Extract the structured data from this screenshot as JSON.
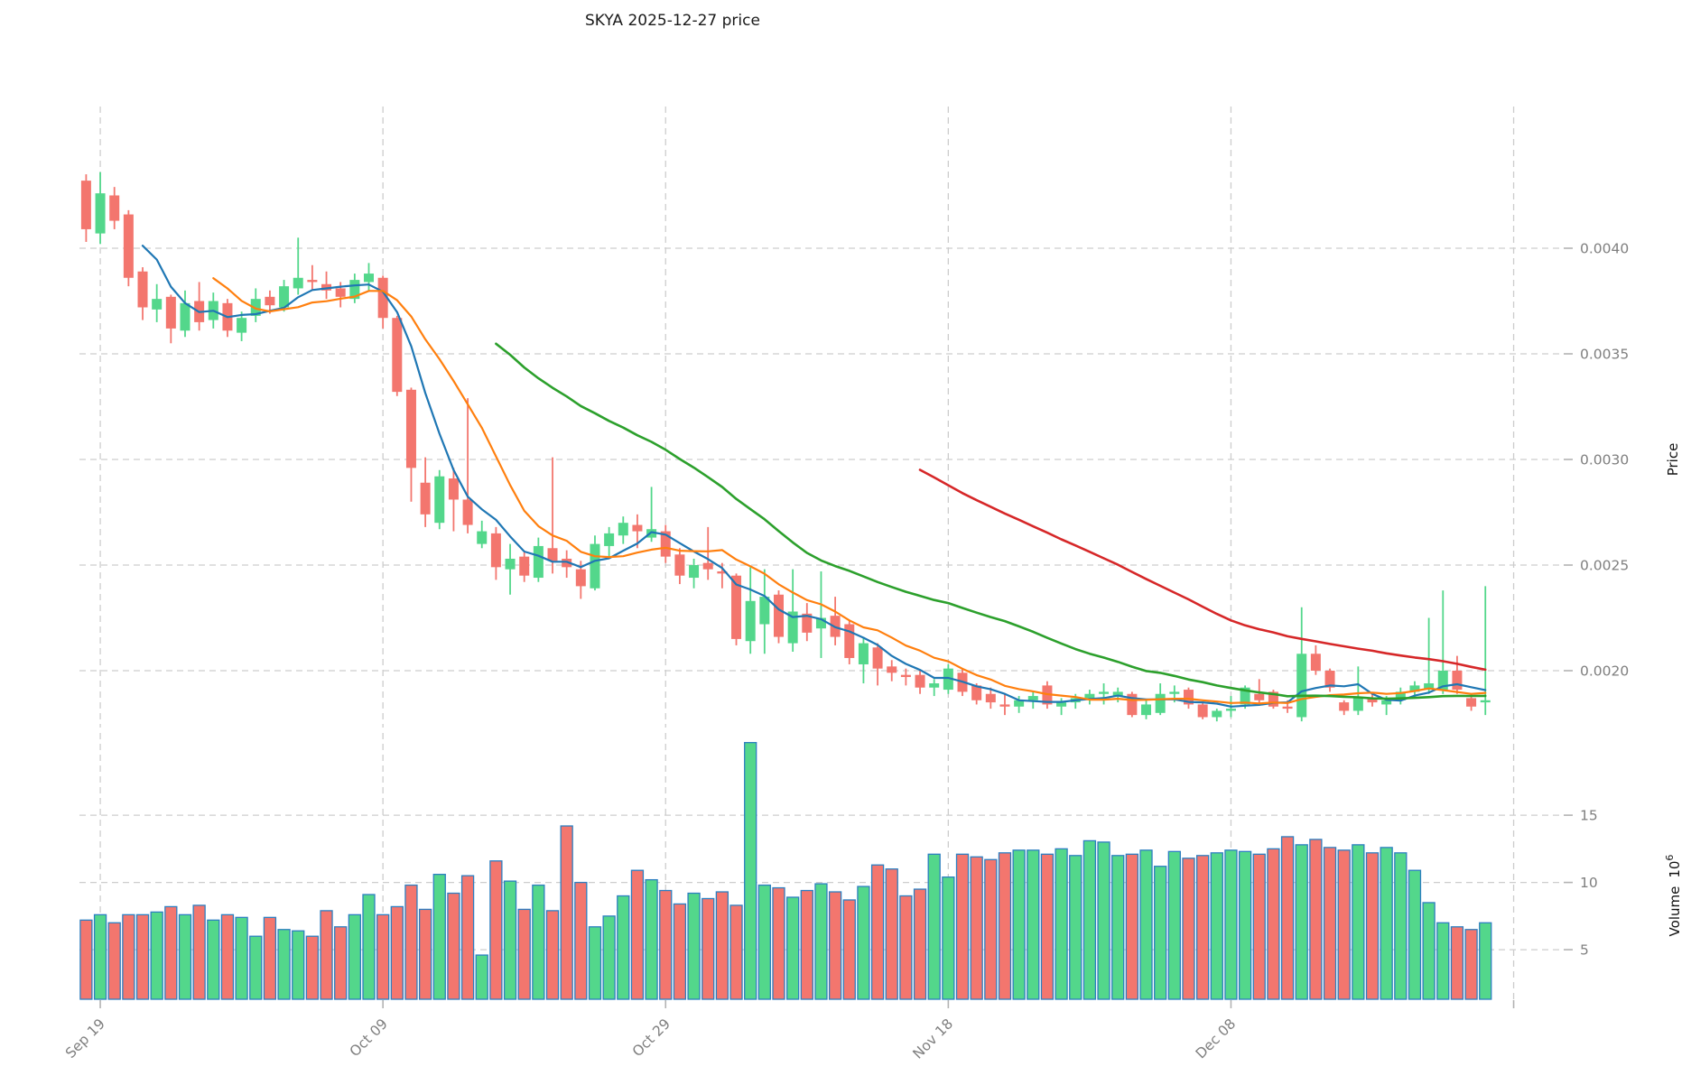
{
  "title": "SKYA  2025-12-27  price",
  "axes": {
    "price_label": "Price",
    "volume_label": "Volume",
    "volume_base": "10",
    "volume_exponent": "6",
    "price_ticks": [
      0.004,
      0.0035,
      0.003,
      0.0025,
      0.002
    ],
    "volume_ticks": [
      15,
      10,
      5
    ],
    "x_ticks": [
      {
        "label": "Sep 19",
        "day": 1
      },
      {
        "label": "Oct 09",
        "day": 21
      },
      {
        "label": "Oct 29",
        "day": 41
      },
      {
        "label": "Nov 18",
        "day": 61
      },
      {
        "label": "Dec 08",
        "day": 81
      },
      {
        "label": "",
        "day": 101
      }
    ]
  },
  "chart_data": {
    "type": "candlestick_with_volume",
    "symbol": "SKYA",
    "as_of_date": "2025-12-27",
    "year": "2025",
    "price_scale": 0.0001,
    "volume_unit": 1000000,
    "price_ylim": [
      0.00175,
      0.00468
    ],
    "grid": true,
    "colors": {
      "up": "#53d78b",
      "down": "#f3766e",
      "volume_edge": "#2d7fc1",
      "ma5": "#1f77b4",
      "ma10": "#ff7f0e",
      "ma30": "#2ca02c",
      "ma60": "#d62728",
      "gridline": "#cdcdcd",
      "tick_label": "#7f7f7f"
    },
    "moving_averages": [
      {
        "name": "MA5",
        "window": 5,
        "color": "#1f77b4",
        "width": 2.2
      },
      {
        "name": "MA10",
        "window": 10,
        "color": "#ff7f0e",
        "width": 2.2
      },
      {
        "name": "MA30",
        "window": 30,
        "color": "#2ca02c",
        "width": 2.6
      },
      {
        "name": "MA60",
        "window": 60,
        "color": "#d62728",
        "width": 2.6
      }
    ],
    "candles_columns": [
      "date",
      "open",
      "high",
      "low",
      "close",
      "volume_millions"
    ],
    "candles": [
      [
        "09-18",
        43.2,
        43.5,
        40.3,
        40.9,
        7.2
      ],
      [
        "09-19",
        40.7,
        43.6,
        40.2,
        42.6,
        7.6
      ],
      [
        "09-20",
        42.5,
        42.9,
        40.9,
        41.3,
        7.0
      ],
      [
        "09-21",
        41.6,
        41.8,
        38.2,
        38.6,
        7.6
      ],
      [
        "09-22",
        38.9,
        39.1,
        36.6,
        37.2,
        7.6
      ],
      [
        "09-23",
        37.1,
        38.3,
        36.5,
        37.6,
        7.8
      ],
      [
        "09-24",
        37.7,
        37.8,
        35.5,
        36.2,
        8.2
      ],
      [
        "09-25",
        36.1,
        38.0,
        35.8,
        37.4,
        7.6
      ],
      [
        "09-26",
        37.5,
        38.4,
        36.1,
        36.5,
        8.3
      ],
      [
        "09-27",
        36.6,
        37.9,
        36.2,
        37.5,
        7.2
      ],
      [
        "09-28",
        37.4,
        37.6,
        35.8,
        36.1,
        7.6
      ],
      [
        "09-29",
        36.0,
        37.0,
        35.6,
        36.7,
        7.4
      ],
      [
        "09-30",
        36.8,
        38.1,
        36.5,
        37.6,
        6.0
      ],
      [
        "10-01",
        37.7,
        38.0,
        36.9,
        37.3,
        7.4
      ],
      [
        "10-02",
        37.2,
        38.5,
        37.0,
        38.2,
        6.5
      ],
      [
        "10-03",
        38.1,
        40.5,
        37.8,
        38.6,
        6.4
      ],
      [
        "10-04",
        38.5,
        39.2,
        38.0,
        38.4,
        6.0
      ],
      [
        "10-05",
        38.3,
        38.9,
        37.6,
        38.0,
        7.9
      ],
      [
        "10-06",
        38.1,
        38.4,
        37.2,
        37.7,
        6.7
      ],
      [
        "10-07",
        37.6,
        38.8,
        37.4,
        38.5,
        7.6
      ],
      [
        "10-08",
        38.4,
        39.3,
        38.0,
        38.8,
        9.1
      ],
      [
        "10-09",
        38.6,
        38.7,
        36.2,
        36.7,
        7.6
      ],
      [
        "10-10",
        36.7,
        36.8,
        33.0,
        33.2,
        8.2
      ],
      [
        "10-11",
        33.3,
        33.4,
        28.0,
        29.6,
        9.8
      ],
      [
        "10-12",
        28.9,
        30.1,
        26.8,
        27.4,
        8.0
      ],
      [
        "10-13",
        27.0,
        29.5,
        26.7,
        29.2,
        10.6
      ],
      [
        "10-14",
        29.1,
        29.6,
        26.6,
        28.1,
        9.2
      ],
      [
        "10-15",
        28.1,
        32.9,
        26.5,
        26.9,
        10.5
      ],
      [
        "10-16",
        26.0,
        27.1,
        25.8,
        26.6,
        4.6
      ],
      [
        "10-17",
        26.5,
        26.8,
        24.3,
        24.9,
        11.6
      ],
      [
        "10-18",
        24.8,
        26.0,
        23.6,
        25.3,
        10.1
      ],
      [
        "10-19",
        25.4,
        25.6,
        24.2,
        24.5,
        8.0
      ],
      [
        "10-20",
        24.4,
        26.3,
        24.2,
        25.9,
        9.8
      ],
      [
        "10-21",
        25.8,
        30.1,
        24.6,
        25.2,
        7.9
      ],
      [
        "10-22",
        25.3,
        25.7,
        24.4,
        24.9,
        14.2
      ],
      [
        "10-23",
        24.8,
        25.2,
        23.4,
        24.0,
        10.0
      ],
      [
        "10-24",
        23.9,
        26.4,
        23.8,
        26.0,
        6.7
      ],
      [
        "10-25",
        25.9,
        26.8,
        25.3,
        26.5,
        7.5
      ],
      [
        "10-26",
        26.4,
        27.3,
        26.0,
        27.0,
        9.0
      ],
      [
        "10-27",
        26.9,
        27.4,
        25.8,
        26.6,
        10.9
      ],
      [
        "10-28",
        26.3,
        28.7,
        26.1,
        26.7,
        10.2
      ],
      [
        "10-29",
        26.6,
        26.9,
        25.1,
        25.4,
        9.4
      ],
      [
        "10-30",
        25.5,
        25.8,
        24.1,
        24.5,
        8.4
      ],
      [
        "10-31",
        24.4,
        25.3,
        23.9,
        25.0,
        9.2
      ],
      [
        "11-01",
        25.1,
        26.8,
        24.3,
        24.8,
        8.8
      ],
      [
        "11-02",
        24.7,
        25.1,
        23.9,
        24.6,
        9.3
      ],
      [
        "11-03",
        24.5,
        24.6,
        21.2,
        21.5,
        8.3
      ],
      [
        "11-04",
        21.4,
        24.9,
        20.8,
        23.3,
        20.4
      ],
      [
        "11-05",
        22.2,
        24.8,
        20.8,
        23.5,
        9.8
      ],
      [
        "11-06",
        23.6,
        23.8,
        21.3,
        21.6,
        9.6
      ],
      [
        "11-07",
        21.3,
        24.8,
        20.9,
        22.8,
        8.9
      ],
      [
        "11-08",
        22.7,
        23.2,
        21.4,
        21.8,
        9.4
      ],
      [
        "11-09",
        22.0,
        24.7,
        20.6,
        22.5,
        9.9
      ],
      [
        "11-10",
        22.6,
        23.5,
        21.2,
        21.6,
        9.3
      ],
      [
        "11-11",
        22.2,
        22.4,
        20.3,
        20.6,
        8.7
      ],
      [
        "11-12",
        20.3,
        21.6,
        19.4,
        21.3,
        9.7
      ],
      [
        "11-13",
        21.1,
        21.3,
        19.3,
        20.1,
        11.3
      ],
      [
        "11-14",
        20.2,
        20.5,
        19.5,
        19.9,
        11.0
      ],
      [
        "11-15",
        19.8,
        20.1,
        19.3,
        19.7,
        9.0
      ],
      [
        "11-16",
        19.8,
        20.0,
        18.9,
        19.2,
        9.5
      ],
      [
        "11-17",
        19.2,
        19.6,
        18.8,
        19.4,
        12.1
      ],
      [
        "11-18",
        19.1,
        20.3,
        18.9,
        20.1,
        10.4
      ],
      [
        "11-19",
        19.9,
        20.1,
        18.8,
        19.0,
        12.1
      ],
      [
        "11-20",
        19.3,
        19.4,
        18.4,
        18.6,
        11.9
      ],
      [
        "11-21",
        18.9,
        19.2,
        18.2,
        18.5,
        11.7
      ],
      [
        "11-22",
        18.4,
        18.9,
        17.9,
        18.3,
        12.2
      ],
      [
        "11-23",
        18.3,
        18.8,
        18.0,
        18.6,
        12.4
      ],
      [
        "11-24",
        18.6,
        19.0,
        18.2,
        18.8,
        12.4
      ],
      [
        "11-25",
        19.3,
        19.5,
        18.2,
        18.4,
        12.1
      ],
      [
        "11-26",
        18.3,
        18.7,
        17.9,
        18.5,
        12.5
      ],
      [
        "11-27",
        18.5,
        18.9,
        18.2,
        18.7,
        12.0
      ],
      [
        "11-28",
        18.7,
        19.1,
        18.4,
        18.9,
        13.1
      ],
      [
        "11-29",
        18.9,
        19.4,
        18.4,
        19.0,
        13.0
      ],
      [
        "11-30",
        18.8,
        19.2,
        18.5,
        19.0,
        12.0
      ],
      [
        "12-01",
        18.9,
        19.0,
        17.8,
        17.9,
        12.1
      ],
      [
        "12-02",
        17.9,
        18.6,
        17.7,
        18.4,
        12.4
      ],
      [
        "12-03",
        18.0,
        19.4,
        17.9,
        18.9,
        11.2
      ],
      [
        "12-04",
        18.9,
        19.3,
        18.5,
        19.0,
        12.3
      ],
      [
        "12-05",
        19.1,
        19.2,
        18.2,
        18.4,
        11.8
      ],
      [
        "12-06",
        18.4,
        18.5,
        17.7,
        17.8,
        12.0
      ],
      [
        "12-07",
        17.8,
        18.2,
        17.6,
        18.1,
        12.2
      ],
      [
        "12-08",
        18.1,
        18.8,
        17.8,
        18.2,
        12.4
      ],
      [
        "12-09",
        18.4,
        19.3,
        18.2,
        19.2,
        12.3
      ],
      [
        "12-10",
        18.9,
        19.6,
        18.4,
        18.6,
        12.1
      ],
      [
        "12-11",
        19.0,
        19.1,
        18.2,
        18.3,
        12.5
      ],
      [
        "12-12",
        18.3,
        18.6,
        18.0,
        18.2,
        13.4
      ],
      [
        "12-13",
        17.8,
        23.0,
        17.6,
        20.8,
        12.8
      ],
      [
        "12-14",
        20.8,
        21.2,
        19.8,
        20.0,
        13.2
      ],
      [
        "12-15",
        20.0,
        20.1,
        19.0,
        19.2,
        12.6
      ],
      [
        "12-16",
        18.5,
        18.6,
        17.9,
        18.1,
        12.4
      ],
      [
        "12-17",
        18.1,
        20.2,
        17.9,
        18.7,
        12.8
      ],
      [
        "12-18",
        18.7,
        18.9,
        18.3,
        18.5,
        12.2
      ],
      [
        "12-19",
        18.4,
        18.8,
        17.9,
        18.6,
        12.6
      ],
      [
        "12-20",
        18.6,
        19.2,
        18.4,
        19.0,
        12.2
      ],
      [
        "12-21",
        19.0,
        19.5,
        18.7,
        19.3,
        10.9
      ],
      [
        "12-22",
        19.1,
        22.5,
        18.9,
        19.4,
        8.5
      ],
      [
        "12-23",
        19.1,
        23.8,
        18.9,
        20.0,
        7.0
      ],
      [
        "12-24",
        20.0,
        20.7,
        18.9,
        19.1,
        6.7
      ],
      [
        "12-25",
        18.7,
        18.9,
        18.1,
        18.3,
        6.5
      ],
      [
        "12-26",
        18.5,
        24.0,
        17.9,
        18.6,
        7.0
      ]
    ]
  }
}
